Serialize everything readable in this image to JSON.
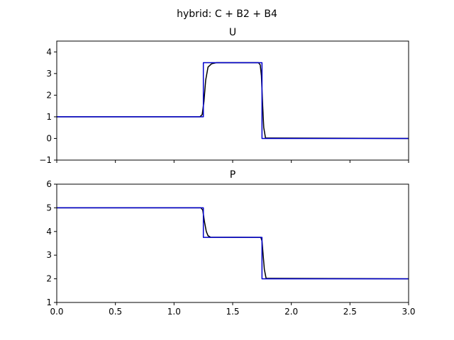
{
  "figure": {
    "suptitle": "hybrid: C + B2 + B4"
  },
  "chart_data": [
    {
      "type": "line",
      "title": "U",
      "xlabel": "",
      "ylabel": "",
      "xlim": [
        0,
        3
      ],
      "ylim": [
        -1,
        4.5
      ],
      "xticks": [
        0,
        0.5,
        1,
        1.5,
        2,
        2.5,
        3
      ],
      "xtick_labels": [],
      "yticks": [
        -1,
        0,
        1,
        2,
        3,
        4
      ],
      "ytick_labels": [
        "−1",
        "0",
        "1",
        "2",
        "3",
        "4"
      ],
      "grid": false,
      "series": [
        {
          "color": "#000000",
          "x": [
            0,
            1.22,
            1.24,
            1.255,
            1.27,
            1.29,
            1.32,
            1.36,
            1.72,
            1.735,
            1.745,
            1.755,
            1.765,
            1.78,
            3
          ],
          "y": [
            1,
            1,
            1.1,
            1.7,
            2.7,
            3.3,
            3.45,
            3.5,
            3.5,
            3.4,
            2.9,
            1.6,
            0.5,
            0.02,
            0
          ]
        },
        {
          "color": "#0000cd",
          "x": [
            0,
            1.25,
            1.25,
            1.75,
            1.75,
            3
          ],
          "y": [
            1,
            1,
            3.5,
            3.5,
            0,
            0
          ]
        }
      ]
    },
    {
      "type": "line",
      "title": "P",
      "xlabel": "",
      "ylabel": "",
      "xlim": [
        0,
        3
      ],
      "ylim": [
        1,
        6
      ],
      "xticks": [
        0,
        0.5,
        1,
        1.5,
        2,
        2.5,
        3
      ],
      "xtick_labels": [
        "0.0",
        "0.5",
        "1.0",
        "1.5",
        "2.0",
        "2.5",
        "3.0"
      ],
      "yticks": [
        1,
        2,
        3,
        4,
        5,
        6
      ],
      "ytick_labels": [
        "1",
        "2",
        "3",
        "4",
        "5",
        "6"
      ],
      "grid": false,
      "series": [
        {
          "color": "#000000",
          "x": [
            0,
            1.23,
            1.245,
            1.26,
            1.275,
            1.29,
            1.31,
            1.74,
            1.75,
            1.76,
            1.77,
            1.785,
            3
          ],
          "y": [
            5,
            5,
            4.9,
            4.4,
            4.0,
            3.82,
            3.76,
            3.75,
            3.6,
            3.0,
            2.4,
            2.02,
            2
          ]
        },
        {
          "color": "#0000cd",
          "x": [
            0,
            1.25,
            1.25,
            1.75,
            1.75,
            3
          ],
          "y": [
            5,
            5,
            3.75,
            3.75,
            2,
            2
          ]
        }
      ]
    }
  ]
}
